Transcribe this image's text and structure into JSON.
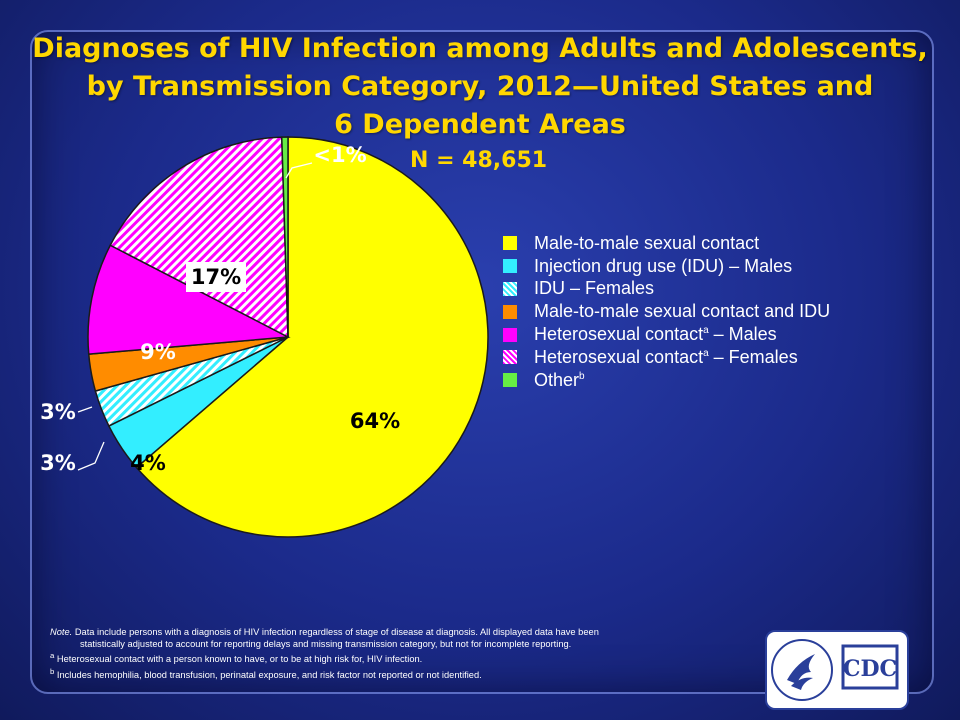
{
  "title": {
    "line1": "Diagnoses of HIV Infection among Adults and Adolescents,",
    "line2": "by Transmission Category, 2012—United States and",
    "line3": "6 Dependent Areas"
  },
  "n_label": "N = 48,651",
  "chart_data": {
    "type": "pie",
    "title": "Diagnoses of HIV Infection among Adults and Adolescents, by Transmission Category, 2012—United States and 6 Dependent Areas",
    "total": 48651,
    "start_angle_deg": 0,
    "direction": "clockwise",
    "legend_position": "right",
    "slices": [
      {
        "name": "Male-to-male sexual contact",
        "value": 64,
        "label": "64%",
        "color": "#ffff00",
        "pattern": "solid"
      },
      {
        "name": "Injection drug use (IDU) – Males",
        "value": 4,
        "label": "4%",
        "color": "#33eeff",
        "pattern": "solid"
      },
      {
        "name": "IDU – Females",
        "value": 3,
        "label": "3%",
        "color": "#33eeff",
        "pattern": "hatch"
      },
      {
        "name": "Male-to-male sexual contact and IDU",
        "value": 3,
        "label": "3%",
        "color": "#ff8c00",
        "pattern": "solid"
      },
      {
        "name": "Heterosexual contact – Males",
        "value": 9,
        "label": "9%",
        "color": "#ff00ff",
        "pattern": "solid"
      },
      {
        "name": "Heterosexual contact – Females",
        "value": 17,
        "label": "17%",
        "color": "#ff00ff",
        "pattern": "hatch"
      },
      {
        "name": "Other",
        "value": 0.5,
        "label": "<1%",
        "color": "#66ee44",
        "pattern": "solid"
      }
    ]
  },
  "legend": [
    {
      "text": "Male-to-male sexual contact",
      "sup": ""
    },
    {
      "text": "Injection drug use (IDU) – Males",
      "sup": ""
    },
    {
      "text": "IDU – Females",
      "sup": ""
    },
    {
      "text": "Male-to-male sexual contact and IDU",
      "sup": ""
    },
    {
      "text": "Heterosexual contact",
      "sup": "a",
      "suffix": " – Males"
    },
    {
      "text": "Heterosexual contact",
      "sup": "a",
      "suffix": " – Females"
    },
    {
      "text": "Other",
      "sup": "b",
      "suffix": ""
    }
  ],
  "footnotes": {
    "note_label": "Note.",
    "note_text": " Data include persons with a diagnosis of HIV infection regardless of stage of disease at diagnosis. All displayed data have been",
    "note_text2": "statistically adjusted to account for reporting delays and missing transmission category, but not for incomplete reporting.",
    "a_mark": "a",
    "a_text": " Heterosexual contact with a person known to have, or to be at high risk for, HIV infection.",
    "b_mark": "b",
    "b_text": " Includes hemophilia, blood transfusion, perinatal exposure, and risk factor not reported or not identified."
  },
  "logo": {
    "text": "CDC"
  }
}
